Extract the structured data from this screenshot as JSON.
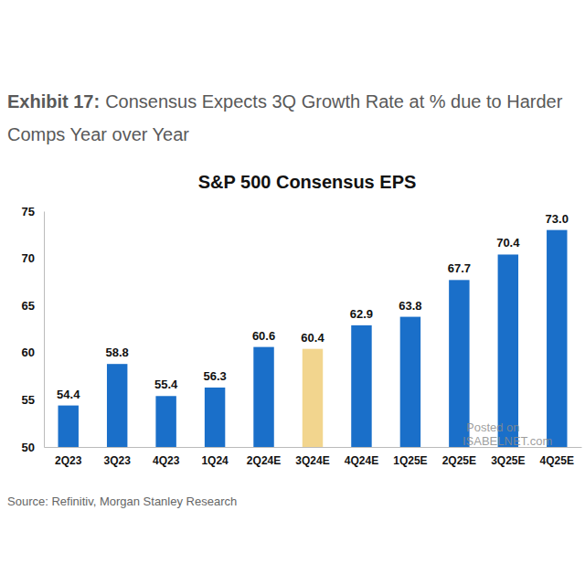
{
  "chart_data": {
    "type": "bar",
    "exhibit_label": "Exhibit 17:",
    "title": "Consensus Expects 3Q Growth Rate at % due to Harder Comps Year over Year",
    "subtitle": "S&P 500 Consensus EPS",
    "source": "Source: Refinitiv, Morgan Stanley Research",
    "annotations": [
      "Posted on",
      "ISABELNET.com"
    ],
    "categories": [
      "2Q23",
      "3Q23",
      "4Q23",
      "1Q24",
      "2Q24E",
      "3Q24E",
      "4Q24E",
      "1Q25E",
      "2Q25E",
      "3Q25E",
      "4Q25E"
    ],
    "values": [
      54.4,
      58.8,
      55.4,
      56.3,
      60.6,
      60.4,
      62.9,
      63.8,
      67.7,
      70.4,
      73.0
    ],
    "value_labels": [
      "54.4",
      "58.8",
      "55.4",
      "56.3",
      "60.6",
      "60.4",
      "62.9",
      "63.8",
      "67.7",
      "70.4",
      "73.0"
    ],
    "colors": [
      "#1a6fc9",
      "#1a6fc9",
      "#1a6fc9",
      "#1a6fc9",
      "#1a6fc9",
      "#f2d58e",
      "#1a6fc9",
      "#1a6fc9",
      "#1a6fc9",
      "#1a6fc9",
      "#1a6fc9"
    ],
    "ylim": [
      50,
      75
    ],
    "yticks": [
      50,
      55,
      60,
      65,
      70,
      75
    ],
    "grid": false,
    "data_labels": true
  }
}
